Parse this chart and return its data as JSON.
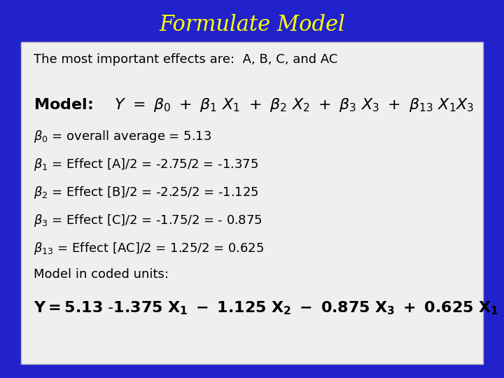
{
  "title": "Formulate Model",
  "title_color": "#FFFF00",
  "bg_color": "#2222CC",
  "box_bg": "#EFEFEF",
  "box_text_color": "#000000",
  "title_fontsize": 22,
  "body_fontsize": 13,
  "bold_fontsize": 14
}
